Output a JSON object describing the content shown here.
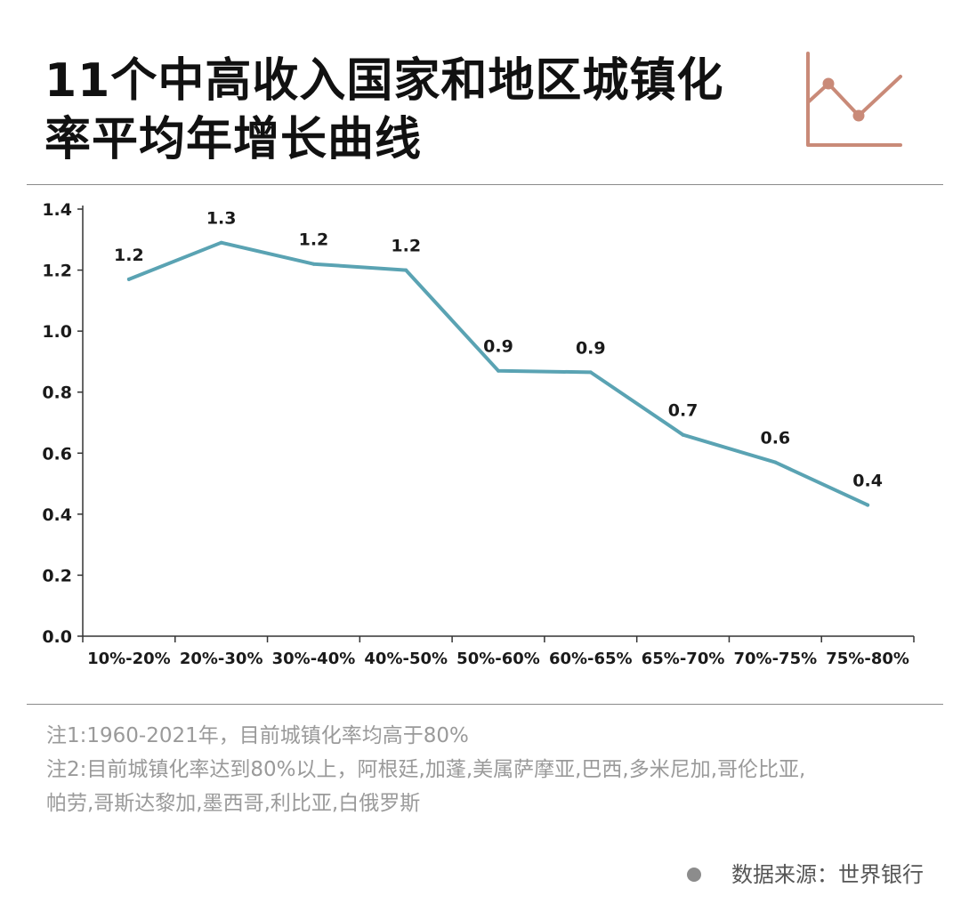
{
  "title": {
    "line1": "11个中高收入国家和地区城镇化",
    "line2": "率平均年增长曲线"
  },
  "header_icon": "line-chart-icon",
  "colors": {
    "line": "#5aa3b3",
    "icon": "#c98a78",
    "axis": "#333333",
    "note_text": "#9a9a9a"
  },
  "chart_data": {
    "type": "line",
    "categories": [
      "10%-20%",
      "20%-30%",
      "30%-40%",
      "40%-50%",
      "50%-60%",
      "60%-65%",
      "65%-70%",
      "70%-75%",
      "75%-80%"
    ],
    "values": [
      1.17,
      1.29,
      1.22,
      1.2,
      0.87,
      0.865,
      0.66,
      0.57,
      0.43
    ],
    "data_labels": [
      "1.2",
      "1.3",
      "1.2",
      "1.2",
      "0.9",
      "0.9",
      "0.7",
      "0.6",
      "0.4"
    ],
    "y_ticks": [
      "0.0",
      "0.2",
      "0.4",
      "0.6",
      "0.8",
      "1.0",
      "1.2",
      "1.4"
    ],
    "ylim": [
      0,
      1.4
    ],
    "grid": false,
    "legend": "none",
    "title": "",
    "xlabel": "",
    "ylabel": ""
  },
  "notes": [
    "注1:1960-2021年，目前城镇化率均高于80%",
    "注2:目前城镇化率达到80%以上，阿根廷,加蓬,美属萨摩亚,巴西,多米尼加,哥伦比亚,",
    "帕劳,哥斯达黎加,墨西哥,利比亚,白俄罗斯"
  ],
  "source": "数据来源：世界银行"
}
